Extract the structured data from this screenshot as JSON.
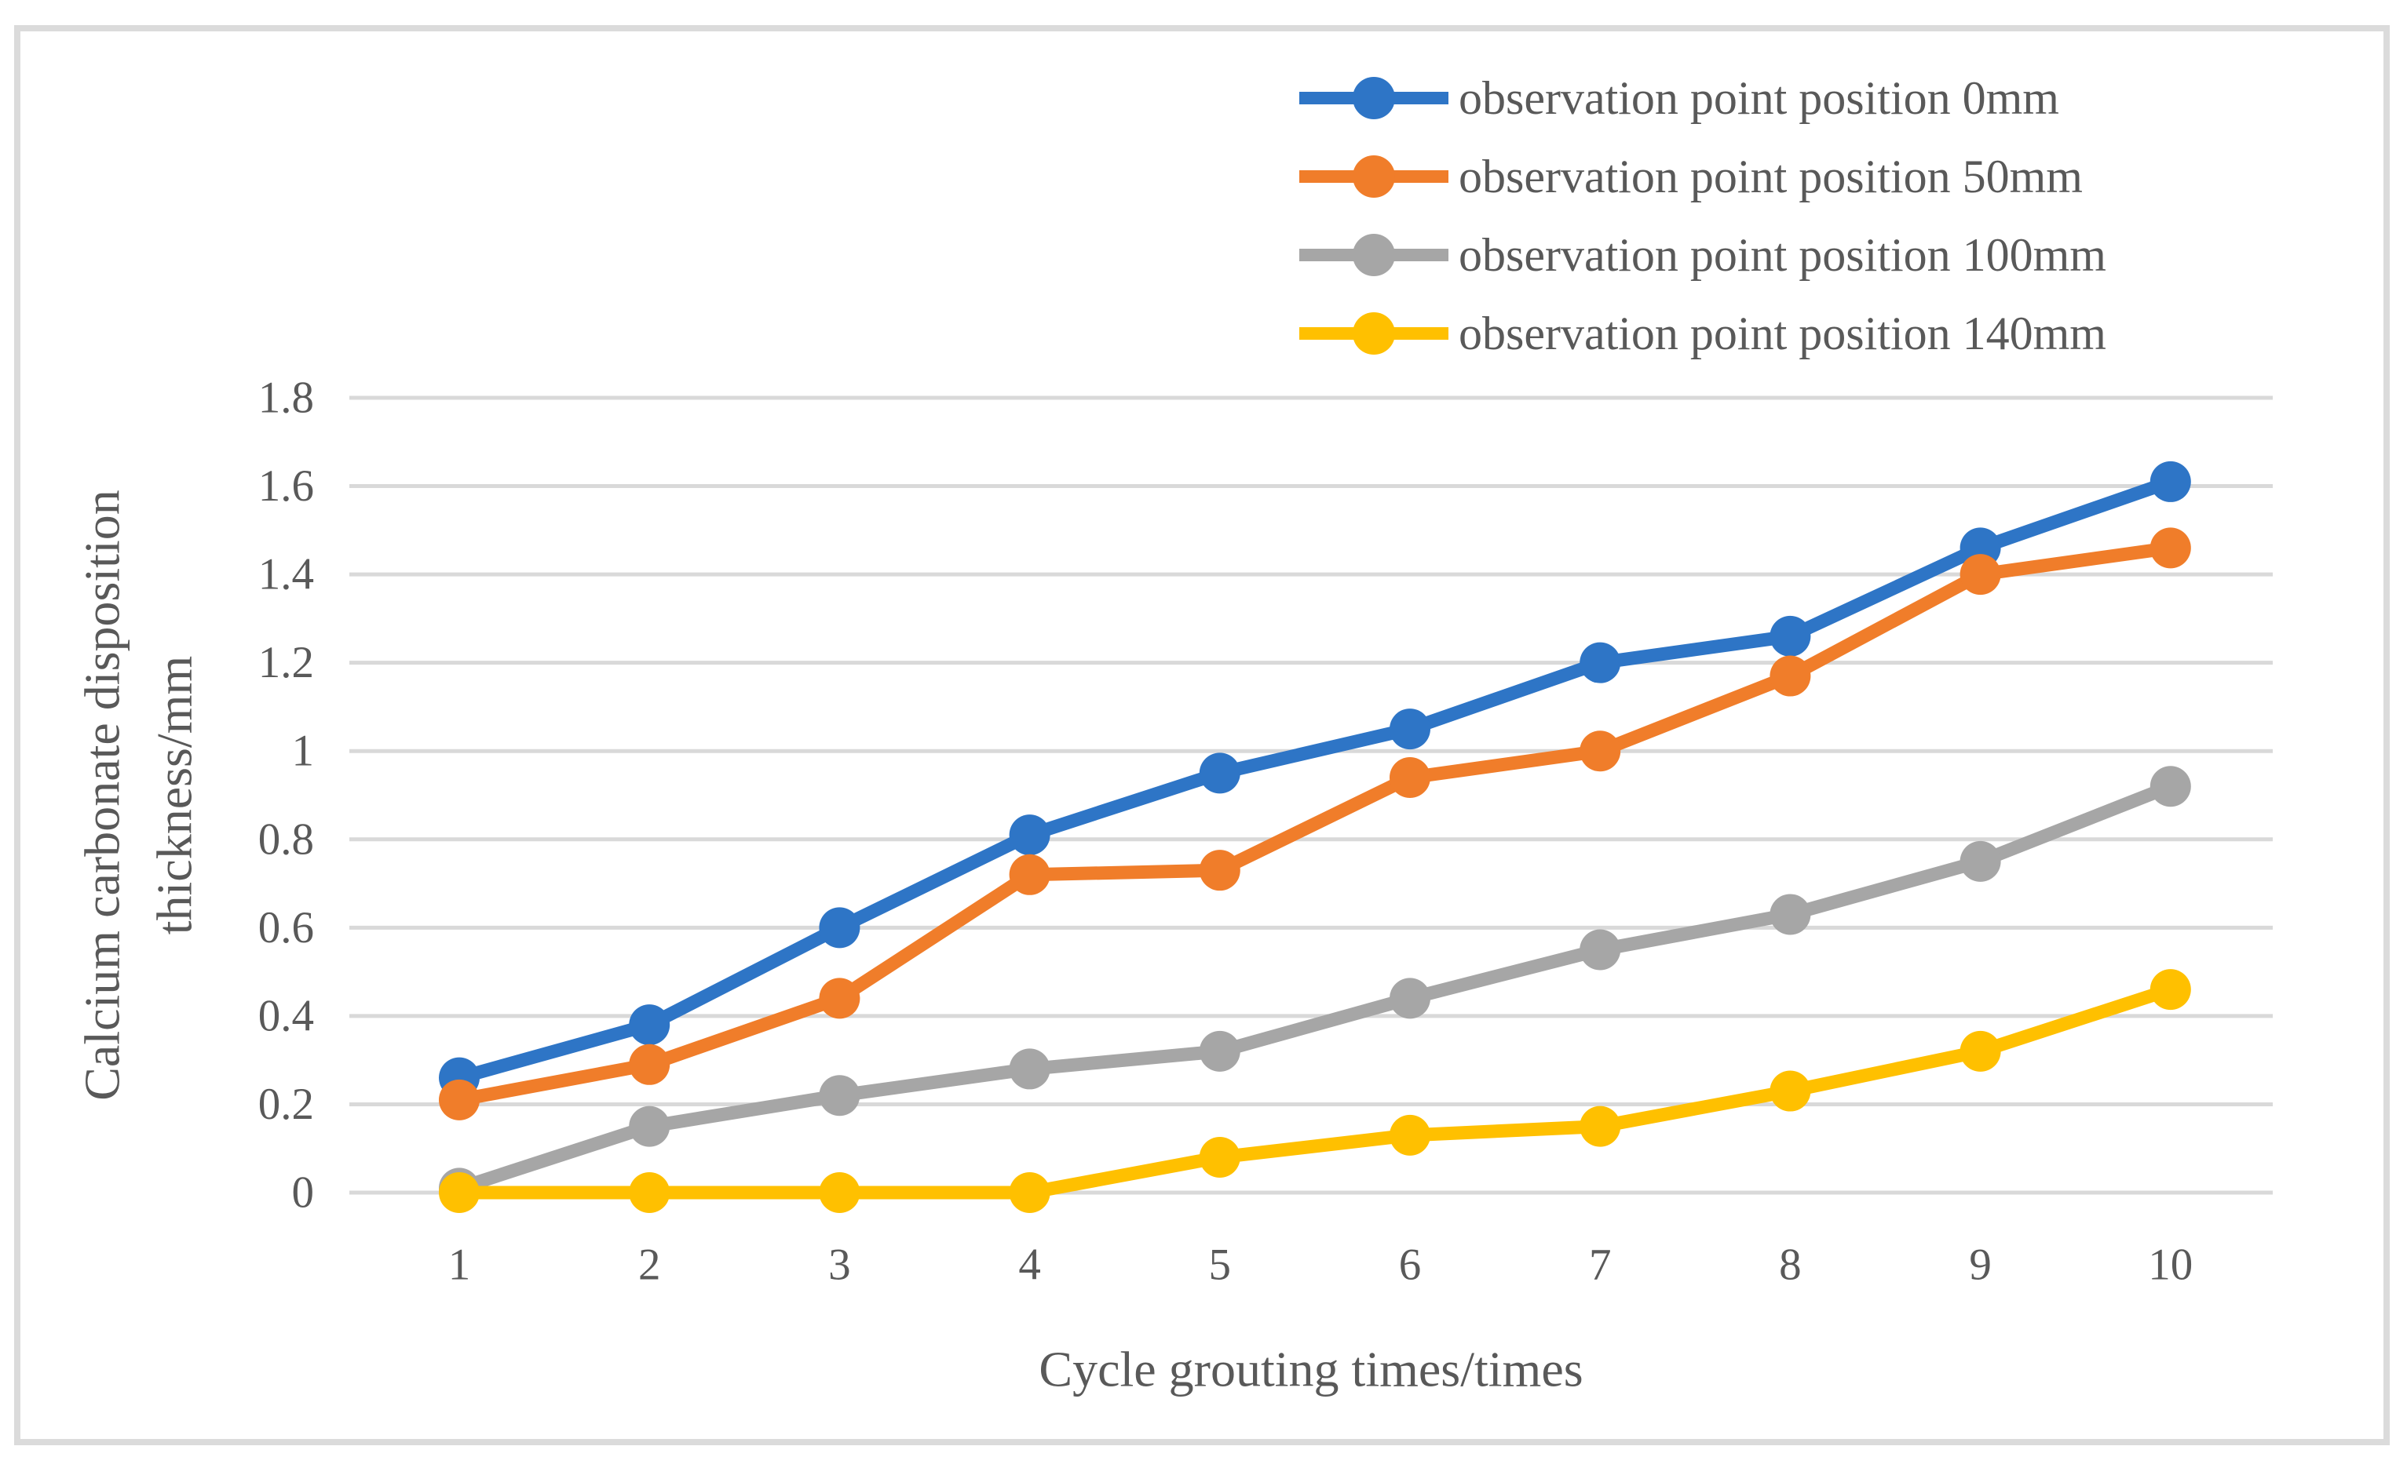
{
  "chart_data": {
    "type": "line",
    "title": "",
    "xlabel": "Cycle grouting times/times",
    "ylabel": "Calcium carbonate disposition thickness/mm",
    "ylabel_lines": [
      "Calcium carbonate disposition",
      "thickness/mm"
    ],
    "x": [
      1,
      2,
      3,
      4,
      5,
      6,
      7,
      8,
      9,
      10
    ],
    "ylim": [
      0,
      1.8
    ],
    "ytick_step": 0.2,
    "yticks": [
      "0",
      "0.2",
      "0.4",
      "0.6",
      "0.8",
      "1",
      "1.2",
      "1.4",
      "1.6",
      "1.8"
    ],
    "grid": true,
    "grid_axis": "y",
    "legend_position": "top-right",
    "marker": "circle",
    "series": [
      {
        "name": "observation point position 0mm",
        "color": "#2E75C6",
        "values": [
          0.26,
          0.38,
          0.6,
          0.81,
          0.95,
          1.05,
          1.2,
          1.26,
          1.46,
          1.61
        ]
      },
      {
        "name": "observation point position 50mm",
        "color": "#F07D2A",
        "values": [
          0.21,
          0.29,
          0.44,
          0.72,
          0.73,
          0.94,
          1.0,
          1.17,
          1.4,
          1.46
        ]
      },
      {
        "name": "observation point position 100mm",
        "color": "#A6A6A6",
        "values": [
          0.01,
          0.15,
          0.22,
          0.28,
          0.32,
          0.44,
          0.55,
          0.63,
          0.75,
          0.92
        ]
      },
      {
        "name": "observation point position 140mm",
        "color": "#FFC000",
        "values": [
          0.0,
          0.0,
          0.0,
          0.0,
          0.08,
          0.13,
          0.15,
          0.23,
          0.32,
          0.46
        ]
      }
    ]
  },
  "styles": {
    "background": "#FFFFFF",
    "frame_color": "#DBDBDB",
    "gridline_color": "#D9D9D9",
    "text_color": "#595959",
    "line_width": 17,
    "marker_radius": 26
  }
}
